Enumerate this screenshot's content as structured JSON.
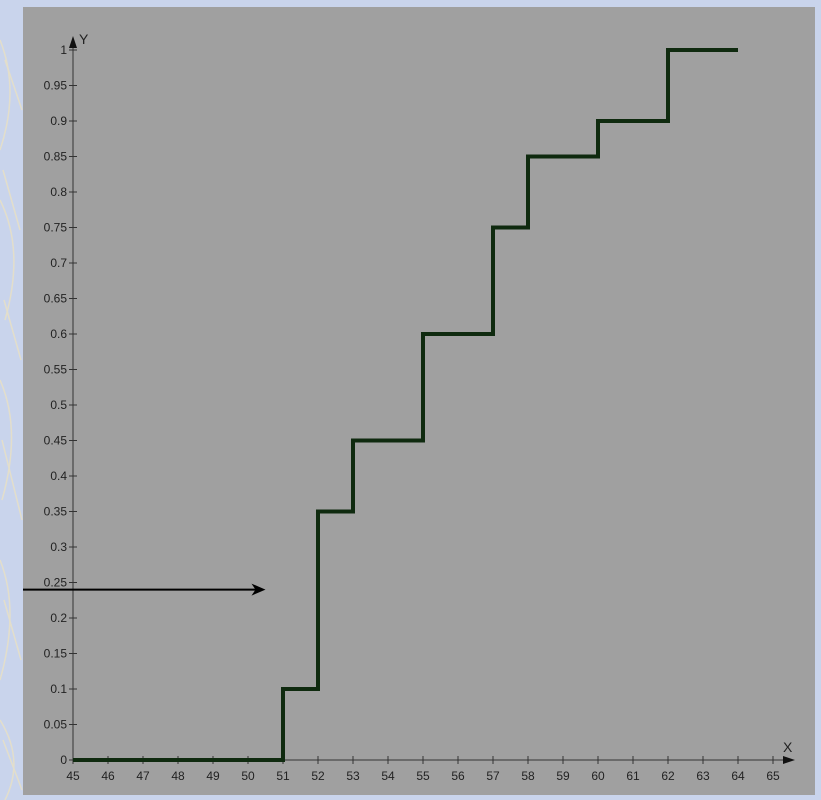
{
  "chart_data": {
    "type": "line",
    "step": "post",
    "title": "",
    "xlabel": "X",
    "ylabel": "Y",
    "xlim": [
      45,
      65
    ],
    "ylim": [
      0,
      1
    ],
    "grid": false,
    "x_ticks": [
      "45",
      "46",
      "47",
      "48",
      "49",
      "50",
      "51",
      "52",
      "53",
      "54",
      "55",
      "56",
      "57",
      "58",
      "59",
      "60",
      "61",
      "62",
      "63",
      "64",
      "65"
    ],
    "y_ticks": [
      "0",
      "0.05",
      "0.1",
      "0.15",
      "0.2",
      "0.25",
      "0.3",
      "0.35",
      "0.4",
      "0.45",
      "0.5",
      "0.55",
      "0.6",
      "0.65",
      "0.7",
      "0.75",
      "0.8",
      "0.85",
      "0.9",
      "0.95",
      "1"
    ],
    "series": [
      {
        "x": [
          45,
          51,
          52,
          53,
          55,
          57,
          58,
          60,
          62,
          64
        ],
        "y": [
          0,
          0.1,
          0.35,
          0.45,
          0.6,
          0.75,
          0.85,
          0.9,
          1,
          1
        ]
      }
    ],
    "annotations": [
      {
        "type": "arrow",
        "y": 0.24,
        "x_end": 50.5
      }
    ],
    "colors": {
      "line": "#0f2a0f",
      "plot_bg": "#a0a0a0",
      "page_bg": "#c9d4ec"
    }
  }
}
